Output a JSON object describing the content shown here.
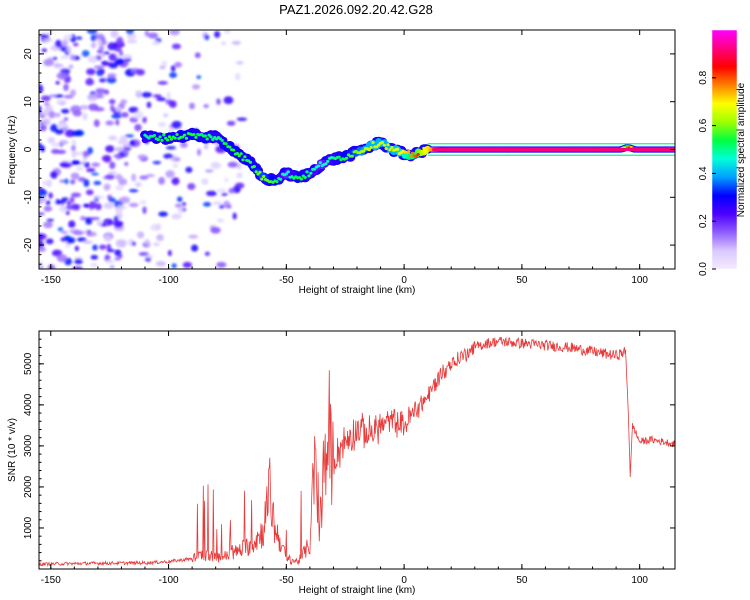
{
  "title": "PAZ1.2026.092.20.42.G28",
  "colors": {
    "snr_line": "#e83a3a",
    "colormap": [
      "#ffffff",
      "#d9c8ff",
      "#8f5cff",
      "#4b00ff",
      "#0000ff",
      "#00a0ff",
      "#00ffd8",
      "#00ff40",
      "#a0ff00",
      "#ffff00",
      "#ff8000",
      "#ff0000",
      "#ff0080",
      "#ff00ff"
    ]
  },
  "chart_data": [
    {
      "type": "heatmap",
      "title": "",
      "xlabel": "Height of straight line (km)",
      "ylabel": "Frequency (Hz)",
      "xlim": [
        -155,
        115
      ],
      "ylim": [
        -25,
        25
      ],
      "xticks": [
        -150,
        -100,
        -50,
        0,
        50,
        100
      ],
      "xtick_labels": [
        "-150",
        "-100",
        "-50",
        "0",
        "50",
        "100"
      ],
      "yticks": [
        -20,
        -10,
        0,
        10,
        20
      ],
      "ytick_labels": [
        "-20",
        "-10",
        "0",
        "10",
        "20"
      ],
      "colorbar": {
        "label": "Normalized spectral amplitude",
        "range": [
          0,
          1
        ],
        "ticks": [
          0,
          0.2,
          0.4,
          0.6,
          0.8
        ],
        "tick_labels": [
          "0.0",
          "0.2",
          "0.4",
          "0.6",
          "0.8"
        ]
      },
      "ridge": {
        "height_km": [
          -110,
          -100,
          -90,
          -80,
          -75,
          -70,
          -65,
          -60,
          -55,
          -50,
          -45,
          -40,
          -35,
          -30,
          -25,
          -20,
          -15,
          -10,
          -5,
          0,
          5,
          10,
          20,
          40,
          60,
          80,
          92,
          95,
          98,
          115
        ],
        "frequency_hz": [
          2.5,
          2.5,
          3,
          2.5,
          1,
          -1,
          -3,
          -6,
          -6.5,
          -5,
          -6,
          -5,
          -3,
          -2,
          -1.5,
          -0.5,
          0.5,
          1.5,
          0,
          -1,
          -1,
          0,
          0,
          0,
          0,
          0,
          0,
          0.5,
          0,
          0
        ],
        "amplitude": [
          0.25,
          0.3,
          0.3,
          0.25,
          0.3,
          0.3,
          0.3,
          0.35,
          0.3,
          0.2,
          0.3,
          0.25,
          0.2,
          0.25,
          0.3,
          0.35,
          0.4,
          0.4,
          0.4,
          0.45,
          0.55,
          0.7,
          0.95,
          0.98,
          0.95,
          0.98,
          0.9,
          0.5,
          0.95,
          0.95
        ]
      },
      "noise": {
        "height_range_km": [
          -155,
          -80
        ],
        "frequency_range_hz": [
          -25,
          25
        ],
        "amplitude_range": [
          0.0,
          0.3
        ]
      }
    },
    {
      "type": "line",
      "title": "",
      "xlabel": "Height of straight line (km)",
      "ylabel": "SNR (10 * v/v)",
      "xlim": [
        -155,
        115
      ],
      "ylim": [
        0,
        5800
      ],
      "xticks": [
        -150,
        -100,
        -50,
        0,
        50,
        100
      ],
      "xtick_labels": [
        "-150",
        "-100",
        "-50",
        "0",
        "50",
        "100"
      ],
      "yticks": [
        1000,
        2000,
        3000,
        4000,
        5000
      ],
      "ytick_labels": [
        "1000",
        "2000",
        "3000",
        "4000",
        "5000"
      ],
      "series": [
        {
          "name": "SNR",
          "x": [
            -155,
            -130,
            -110,
            -100,
            -90,
            -85,
            -80,
            -75,
            -70,
            -65,
            -60,
            -57,
            -55,
            -52,
            -50,
            -45,
            -40,
            -38,
            -36,
            -34,
            -30,
            -25,
            -20,
            -15,
            -10,
            -5,
            0,
            5,
            10,
            15,
            20,
            25,
            30,
            35,
            40,
            50,
            60,
            70,
            80,
            90,
            94,
            95,
            96,
            97,
            100,
            105,
            110,
            115
          ],
          "y": [
            120,
            140,
            150,
            180,
            250,
            350,
            280,
            320,
            450,
            600,
            900,
            1900,
            1000,
            600,
            250,
            180,
            600,
            2600,
            800,
            2500,
            2700,
            3100,
            3400,
            3300,
            3500,
            3600,
            3500,
            3900,
            4200,
            4700,
            5000,
            5200,
            5400,
            5500,
            5550,
            5500,
            5450,
            5400,
            5300,
            5200,
            5300,
            4100,
            2300,
            3500,
            3100,
            3150,
            3100,
            3050
          ]
        }
      ]
    }
  ]
}
